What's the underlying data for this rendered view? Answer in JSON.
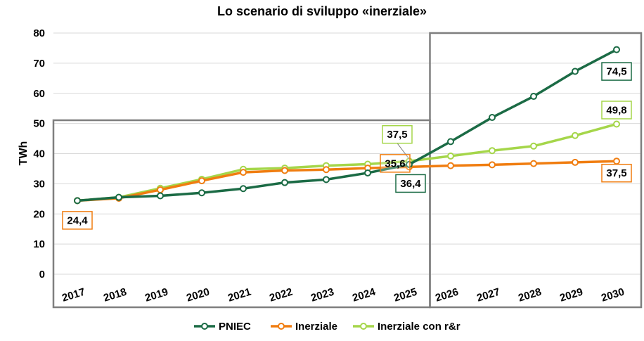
{
  "chart_data": {
    "type": "line",
    "title": "Lo scenario di sviluppo «inerziale»",
    "ylabel": "TWh",
    "xlabel": "",
    "ylim": [
      0,
      80
    ],
    "yticks": [
      0,
      10,
      20,
      30,
      40,
      50,
      60,
      70,
      80
    ],
    "categories": [
      "2017",
      "2018",
      "2019",
      "2020",
      "2021",
      "2022",
      "2023",
      "2024",
      "2025",
      "2026",
      "2027",
      "2028",
      "2029",
      "2030"
    ],
    "grid": true,
    "legend_position": "bottom",
    "series": [
      {
        "name": "Inerziale con r&r",
        "color": "#a5d64a",
        "values": [
          24.4,
          25.5,
          28.5,
          31.5,
          34.8,
          35.2,
          36.0,
          36.5,
          37.5,
          39.2,
          41.0,
          42.5,
          46.0,
          49.8
        ]
      },
      {
        "name": "Inerziale",
        "color": "#f07d10",
        "values": [
          24.4,
          25.2,
          28.0,
          31.0,
          33.8,
          34.4,
          34.7,
          35.2,
          35.6,
          36.0,
          36.3,
          36.7,
          37.1,
          37.5
        ]
      },
      {
        "name": "PNIEC",
        "color": "#1b6b45",
        "values": [
          24.4,
          25.5,
          26.0,
          27.0,
          28.4,
          30.4,
          31.4,
          33.6,
          36.4,
          44.0,
          52.0,
          59.0,
          67.3,
          74.5
        ]
      }
    ],
    "legend": [
      "PNIEC",
      "Inerziale",
      "Inerziale con r&r"
    ],
    "annotations": [
      {
        "text": "24,4",
        "series": "Inerziale",
        "category": "2017",
        "color": "#f07d10"
      },
      {
        "text": "37,5",
        "series": "Inerziale con r&r",
        "category": "2025",
        "color": "#a5d64a"
      },
      {
        "text": "35,6",
        "series": "Inerziale",
        "category": "2025",
        "color": "#f07d10"
      },
      {
        "text": "36,4",
        "series": "PNIEC",
        "category": "2025",
        "color": "#1b6b45"
      },
      {
        "text": "74,5",
        "series": "PNIEC",
        "category": "2030",
        "color": "#1b6b45"
      },
      {
        "text": "49,8",
        "series": "Inerziale con r&r",
        "category": "2030",
        "color": "#a5d64a"
      },
      {
        "text": "37,5",
        "series": "Inerziale",
        "category": "2030",
        "color": "#f07d10"
      }
    ]
  }
}
